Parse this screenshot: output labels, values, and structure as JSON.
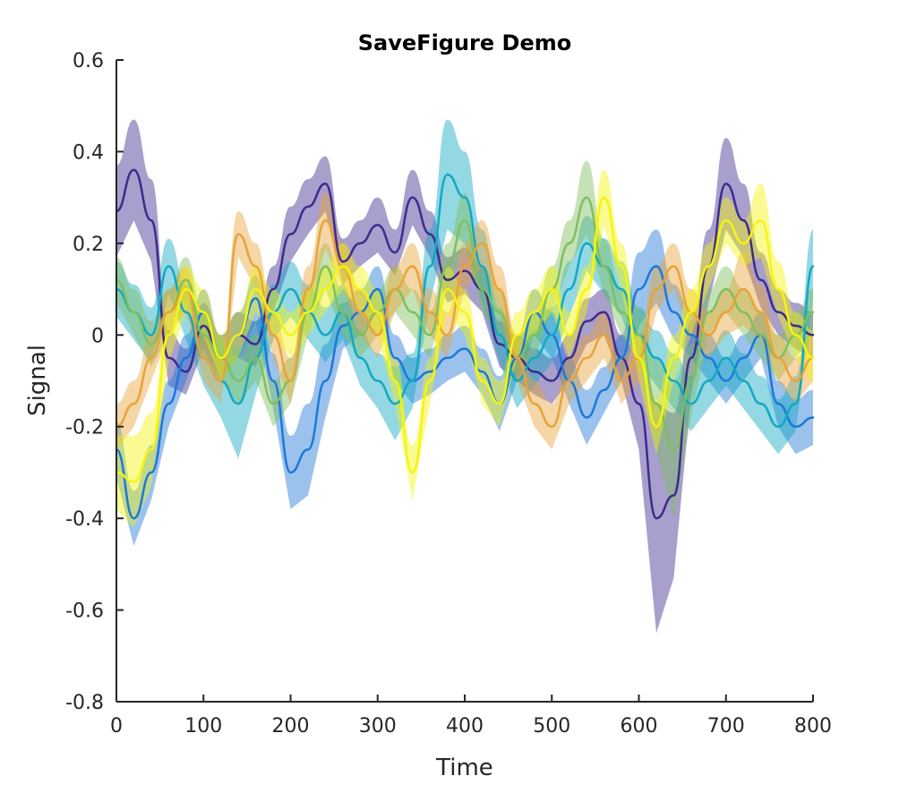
{
  "chart_data": {
    "type": "line",
    "title": "SaveFigure Demo",
    "xlabel": "Time",
    "ylabel": "Signal",
    "xlim": [
      0,
      800
    ],
    "ylim": [
      -0.8,
      0.6
    ],
    "xticks": [
      0,
      100,
      200,
      300,
      400,
      500,
      600,
      700,
      800
    ],
    "yticks": [
      -0.8,
      -0.6,
      -0.4,
      -0.2,
      0,
      0.2,
      0.4,
      0.6
    ],
    "xtick_labels": [
      "0",
      "100",
      "200",
      "300",
      "400",
      "500",
      "600",
      "700",
      "800"
    ],
    "ytick_labels": [
      "-0.8",
      "-0.6",
      "-0.4",
      "-0.2",
      "0",
      "0.2",
      "0.4",
      "0.6"
    ],
    "grid": false,
    "legend": "none",
    "band": "shaded confidence band around each line",
    "x": [
      0,
      20,
      40,
      60,
      80,
      100,
      120,
      140,
      160,
      180,
      200,
      220,
      240,
      260,
      280,
      300,
      320,
      340,
      360,
      380,
      400,
      420,
      440,
      460,
      480,
      500,
      520,
      540,
      560,
      580,
      600,
      620,
      640,
      660,
      680,
      700,
      720,
      740,
      760,
      780,
      800
    ],
    "series": [
      {
        "color": "#3d2b8f",
        "values": [
          0.27,
          0.36,
          0.25,
          -0.05,
          -0.08,
          0.02,
          -0.05,
          0.0,
          -0.02,
          0.1,
          0.22,
          0.28,
          0.33,
          0.16,
          0.2,
          0.24,
          0.18,
          0.3,
          0.22,
          0.12,
          0.14,
          0.1,
          -0.02,
          -0.05,
          -0.08,
          -0.1,
          -0.05,
          0.03,
          0.05,
          -0.05,
          -0.15,
          -0.4,
          -0.35,
          -0.05,
          0.15,
          0.33,
          0.25,
          0.12,
          0.05,
          0.02,
          0.0
        ],
        "band": [
          0.1,
          0.11,
          0.09,
          0.06,
          0.05,
          0.05,
          0.05,
          0.05,
          0.05,
          0.05,
          0.06,
          0.06,
          0.06,
          0.05,
          0.05,
          0.06,
          0.05,
          0.06,
          0.05,
          0.05,
          0.05,
          0.05,
          0.05,
          0.05,
          0.05,
          0.05,
          0.05,
          0.05,
          0.05,
          0.05,
          0.1,
          0.25,
          0.18,
          0.08,
          0.08,
          0.1,
          0.08,
          0.06,
          0.05,
          0.05,
          0.05
        ]
      },
      {
        "color": "#1e78d6",
        "values": [
          -0.25,
          -0.4,
          -0.3,
          -0.15,
          -0.05,
          0.05,
          -0.05,
          0.0,
          0.08,
          -0.1,
          -0.3,
          -0.25,
          -0.1,
          0.02,
          0.05,
          0.1,
          -0.05,
          -0.1,
          -0.08,
          -0.05,
          -0.03,
          -0.08,
          -0.15,
          -0.05,
          0.05,
          0.0,
          -0.1,
          -0.18,
          -0.12,
          -0.05,
          0.1,
          0.15,
          0.05,
          0.0,
          -0.05,
          -0.1,
          -0.05,
          0.0,
          -0.15,
          -0.2,
          -0.18
        ],
        "band": [
          0.06,
          0.06,
          0.06,
          0.05,
          0.05,
          0.05,
          0.05,
          0.05,
          0.05,
          0.06,
          0.08,
          0.1,
          0.08,
          0.05,
          0.05,
          0.05,
          0.05,
          0.05,
          0.05,
          0.05,
          0.05,
          0.05,
          0.06,
          0.05,
          0.05,
          0.05,
          0.05,
          0.06,
          0.05,
          0.05,
          0.08,
          0.08,
          0.06,
          0.05,
          0.05,
          0.05,
          0.05,
          0.05,
          0.05,
          0.06,
          0.06
        ]
      },
      {
        "color": "#12a8c4",
        "values": [
          0.1,
          0.05,
          0.0,
          0.15,
          0.05,
          -0.05,
          -0.1,
          -0.15,
          -0.05,
          0.05,
          0.1,
          0.05,
          0.0,
          0.05,
          -0.05,
          -0.1,
          -0.15,
          -0.1,
          0.15,
          0.35,
          0.3,
          0.15,
          0.0,
          -0.1,
          -0.05,
          0.0,
          0.1,
          0.2,
          0.15,
          0.1,
          0.0,
          -0.05,
          -0.1,
          -0.15,
          -0.1,
          -0.05,
          -0.1,
          -0.15,
          -0.2,
          -0.15,
          0.15
        ],
        "band": [
          0.06,
          0.06,
          0.06,
          0.06,
          0.06,
          0.06,
          0.08,
          0.12,
          0.08,
          0.06,
          0.06,
          0.06,
          0.06,
          0.06,
          0.06,
          0.06,
          0.08,
          0.06,
          0.08,
          0.12,
          0.1,
          0.08,
          0.06,
          0.06,
          0.06,
          0.06,
          0.06,
          0.06,
          0.06,
          0.06,
          0.06,
          0.06,
          0.06,
          0.06,
          0.06,
          0.06,
          0.06,
          0.06,
          0.06,
          0.06,
          0.08
        ]
      },
      {
        "color": "#7fbf5f",
        "values": [
          0.12,
          0.05,
          -0.02,
          0.05,
          0.12,
          0.0,
          -0.05,
          -0.1,
          -0.05,
          -0.15,
          -0.1,
          0.05,
          0.15,
          0.05,
          0.0,
          0.05,
          0.1,
          0.05,
          0.0,
          0.15,
          0.25,
          0.1,
          0.05,
          -0.05,
          0.0,
          0.1,
          0.2,
          0.3,
          0.15,
          0.05,
          0.0,
          -0.15,
          -0.25,
          -0.1,
          0.05,
          0.1,
          0.05,
          0.0,
          -0.05,
          0.0,
          0.05
        ],
        "band": [
          0.05,
          0.05,
          0.05,
          0.05,
          0.05,
          0.05,
          0.05,
          0.05,
          0.05,
          0.05,
          0.05,
          0.05,
          0.05,
          0.05,
          0.05,
          0.05,
          0.05,
          0.05,
          0.05,
          0.05,
          0.06,
          0.05,
          0.05,
          0.05,
          0.05,
          0.05,
          0.05,
          0.08,
          0.06,
          0.05,
          0.06,
          0.1,
          0.15,
          0.08,
          0.05,
          0.05,
          0.05,
          0.05,
          0.05,
          0.05,
          0.05
        ]
      },
      {
        "color": "#e8a33a",
        "values": [
          -0.2,
          -0.15,
          -0.05,
          0.05,
          0.1,
          -0.05,
          -0.1,
          0.22,
          0.15,
          0.0,
          -0.1,
          0.1,
          0.25,
          0.15,
          0.05,
          0.0,
          0.1,
          0.15,
          0.05,
          0.0,
          0.15,
          0.2,
          0.1,
          -0.05,
          -0.15,
          -0.2,
          -0.1,
          -0.05,
          0.0,
          -0.1,
          -0.05,
          0.1,
          0.15,
          0.05,
          0.0,
          0.05,
          0.1,
          0.05,
          -0.05,
          -0.1,
          -0.05
        ],
        "band": [
          0.05,
          0.05,
          0.05,
          0.05,
          0.05,
          0.05,
          0.05,
          0.05,
          0.05,
          0.05,
          0.05,
          0.05,
          0.06,
          0.05,
          0.05,
          0.05,
          0.05,
          0.05,
          0.05,
          0.05,
          0.05,
          0.05,
          0.05,
          0.05,
          0.05,
          0.05,
          0.05,
          0.05,
          0.05,
          0.05,
          0.05,
          0.05,
          0.05,
          0.05,
          0.05,
          0.05,
          0.08,
          0.06,
          0.05,
          0.05,
          0.05
        ]
      },
      {
        "color": "#f5f510",
        "values": [
          -0.3,
          -0.32,
          -0.25,
          0.0,
          0.1,
          0.05,
          -0.05,
          0.0,
          0.1,
          0.05,
          0.0,
          0.05,
          0.1,
          0.15,
          0.1,
          0.05,
          -0.1,
          -0.3,
          -0.1,
          0.1,
          0.05,
          -0.1,
          -0.15,
          0.0,
          0.05,
          0.1,
          0.0,
          0.1,
          0.3,
          0.15,
          -0.05,
          -0.2,
          -0.05,
          0.05,
          0.15,
          0.25,
          0.2,
          0.25,
          0.1,
          0.0,
          -0.05
        ],
        "band": [
          0.08,
          0.1,
          0.08,
          0.06,
          0.05,
          0.05,
          0.05,
          0.05,
          0.05,
          0.05,
          0.05,
          0.05,
          0.05,
          0.05,
          0.05,
          0.05,
          0.05,
          0.06,
          0.05,
          0.05,
          0.05,
          0.05,
          0.05,
          0.05,
          0.05,
          0.05,
          0.05,
          0.05,
          0.06,
          0.05,
          0.05,
          0.06,
          0.05,
          0.05,
          0.05,
          0.05,
          0.05,
          0.08,
          0.06,
          0.05,
          0.06
        ]
      }
    ]
  }
}
